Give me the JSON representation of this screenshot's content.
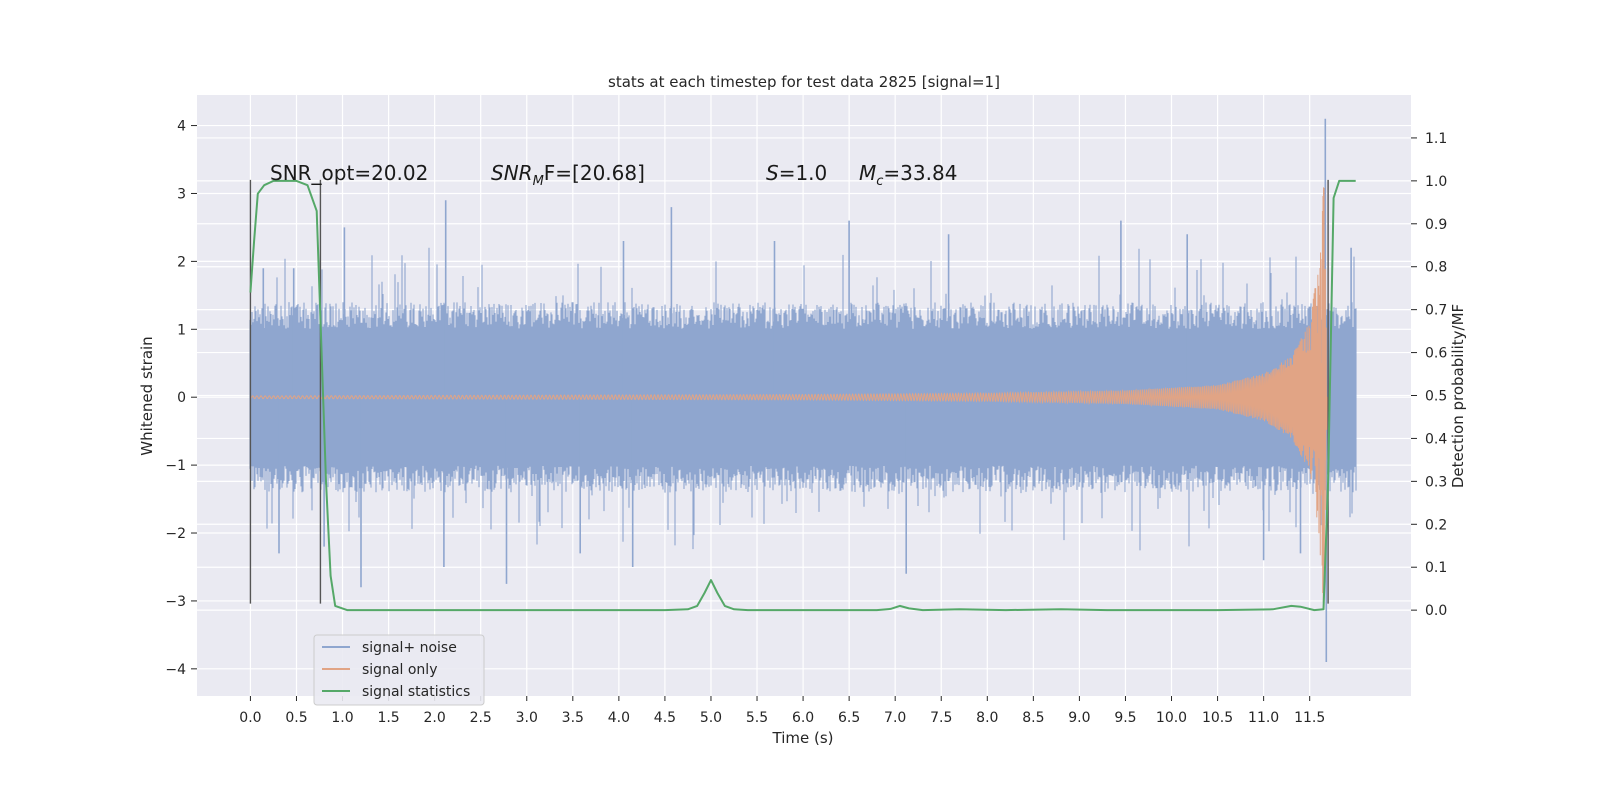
{
  "chart_data": {
    "type": "line",
    "title": "stats at each timestep for test data 2825 [signal=1]",
    "xlabel": "Time (s)",
    "ylabel": "Whitened strain",
    "ylabel_right": "Detection probability/MF",
    "xlim": [
      -0.58,
      12.6
    ],
    "ylim": [
      -4.4,
      4.45
    ],
    "ylim_right": [
      -0.2,
      1.2
    ],
    "xticks": [
      0.0,
      0.5,
      1.0,
      1.5,
      2.0,
      2.5,
      3.0,
      3.5,
      4.0,
      4.5,
      5.0,
      5.5,
      6.0,
      6.5,
      7.0,
      7.5,
      8.0,
      8.5,
      9.0,
      9.5,
      10.0,
      10.5,
      11.0,
      11.5
    ],
    "xtick_labels": [
      "0.0",
      "0.5",
      "1.0",
      "1.5",
      "2.0",
      "2.5",
      "3.0",
      "3.5",
      "4.0",
      "4.5",
      "5.0",
      "5.5",
      "6.0",
      "6.5",
      "7.0",
      "7.5",
      "8.0",
      "8.5",
      "9.0",
      "9.5",
      "10.0",
      "10.5",
      "11.0",
      "11.5"
    ],
    "yticks": [
      -4,
      -3,
      -2,
      -1,
      0,
      1,
      2,
      3,
      4
    ],
    "ytick_labels": [
      "−4",
      "−3",
      "−2",
      "−1",
      "0",
      "1",
      "2",
      "3",
      "4"
    ],
    "yticks_right": [
      0.0,
      0.1,
      0.2,
      0.3,
      0.4,
      0.5,
      0.6,
      0.7,
      0.8,
      0.9,
      1.0,
      1.1
    ],
    "ytick_labels_right": [
      "0.0",
      "0.1",
      "0.2",
      "0.3",
      "0.4",
      "0.5",
      "0.6",
      "0.7",
      "0.8",
      "0.9",
      "1.0",
      "1.1"
    ],
    "grid": true,
    "legend_position": "lower-left",
    "series": [
      {
        "name": "signal+ noise",
        "color": "#8fa6cf",
        "t_range": [
          0.0,
          12.0
        ],
        "typical_envelope": [
          -1.4,
          1.4
        ],
        "extreme_peaks": [
          {
            "t": 0.14,
            "y": 1.9
          },
          {
            "t": 0.31,
            "y": -2.3
          },
          {
            "t": 0.47,
            "y": 1.9
          },
          {
            "t": 0.8,
            "y": -2.2
          },
          {
            "t": 1.02,
            "y": 2.5
          },
          {
            "t": 1.2,
            "y": -2.8
          },
          {
            "t": 2.12,
            "y": 2.9
          },
          {
            "t": 2.1,
            "y": -2.5
          },
          {
            "t": 2.78,
            "y": -2.75
          },
          {
            "t": 3.58,
            "y": -2.3
          },
          {
            "t": 4.15,
            "y": -2.5
          },
          {
            "t": 4.57,
            "y": 2.8
          },
          {
            "t": 4.05,
            "y": 2.3
          },
          {
            "t": 5.69,
            "y": 2.3
          },
          {
            "t": 6.5,
            "y": 2.6
          },
          {
            "t": 7.12,
            "y": -2.6
          },
          {
            "t": 7.58,
            "y": 2.4
          },
          {
            "t": 9.45,
            "y": 2.6
          },
          {
            "t": 10.17,
            "y": 2.4
          },
          {
            "t": 11.0,
            "y": -2.4
          },
          {
            "t": 11.4,
            "y": -2.3
          },
          {
            "t": 11.67,
            "y": 4.1
          },
          {
            "t": 11.68,
            "y": -3.9
          },
          {
            "t": 11.95,
            "y": 2.2
          }
        ]
      },
      {
        "name": "signal only",
        "color": "#e1a485",
        "t_range": [
          0.0,
          11.7
        ],
        "envelope": [
          {
            "t": 0.0,
            "a": 0.02
          },
          {
            "t": 6.0,
            "a": 0.04
          },
          {
            "t": 8.0,
            "a": 0.06
          },
          {
            "t": 9.5,
            "a": 0.1
          },
          {
            "t": 10.5,
            "a": 0.18
          },
          {
            "t": 11.0,
            "a": 0.35
          },
          {
            "t": 11.3,
            "a": 0.6
          },
          {
            "t": 11.5,
            "a": 1.1
          },
          {
            "t": 11.6,
            "a": 2.0
          },
          {
            "t": 11.66,
            "a": 3.3
          },
          {
            "t": 11.69,
            "a": 0.0
          }
        ]
      },
      {
        "name": "signal statistics",
        "color": "#55a868",
        "x": [
          0.0,
          0.04,
          0.08,
          0.15,
          0.25,
          0.35,
          0.5,
          0.62,
          0.72,
          0.77,
          0.82,
          0.87,
          0.92,
          1.05,
          4.5,
          4.75,
          4.85,
          4.93,
          5.0,
          5.07,
          5.15,
          5.25,
          5.4,
          6.8,
          6.95,
          7.05,
          7.15,
          7.3,
          7.7,
          8.2,
          8.8,
          9.3,
          10.5,
          11.1,
          11.3,
          11.4,
          11.55,
          11.65,
          11.7,
          11.76,
          11.82,
          11.9,
          12.0
        ],
        "values": [
          0.74,
          0.86,
          0.97,
          0.99,
          1.0,
          1.0,
          1.0,
          0.99,
          0.93,
          0.62,
          0.3,
          0.08,
          0.01,
          0.0,
          0.0,
          0.002,
          0.01,
          0.04,
          0.07,
          0.04,
          0.01,
          0.002,
          0.0,
          0.0,
          0.003,
          0.01,
          0.004,
          0.0,
          0.002,
          0.0,
          0.002,
          0.0,
          0.0,
          0.002,
          0.01,
          0.008,
          0.0,
          0.002,
          0.3,
          0.96,
          1.0,
          1.0,
          1.0
        ]
      }
    ],
    "vertical_markers": [
      {
        "t": 0.0,
        "y_range": [
          -3.04,
          3.2
        ]
      },
      {
        "t": 0.76,
        "y_range": [
          -3.04,
          3.2
        ]
      },
      {
        "t": 11.7,
        "y_range": [
          -3.04,
          3.2
        ]
      }
    ],
    "annotations": [
      {
        "id": "snr-opt",
        "text": "SNR_opt=20.02"
      },
      {
        "id": "snr-mf",
        "text": "SNR",
        "sub": "M",
        "tail": "F=[20.68]"
      },
      {
        "id": "s-value",
        "text": "S",
        "tail": "=1.0"
      },
      {
        "id": "mc-value",
        "text": "M",
        "sub": "c",
        "tail": "=33.84"
      }
    ]
  }
}
